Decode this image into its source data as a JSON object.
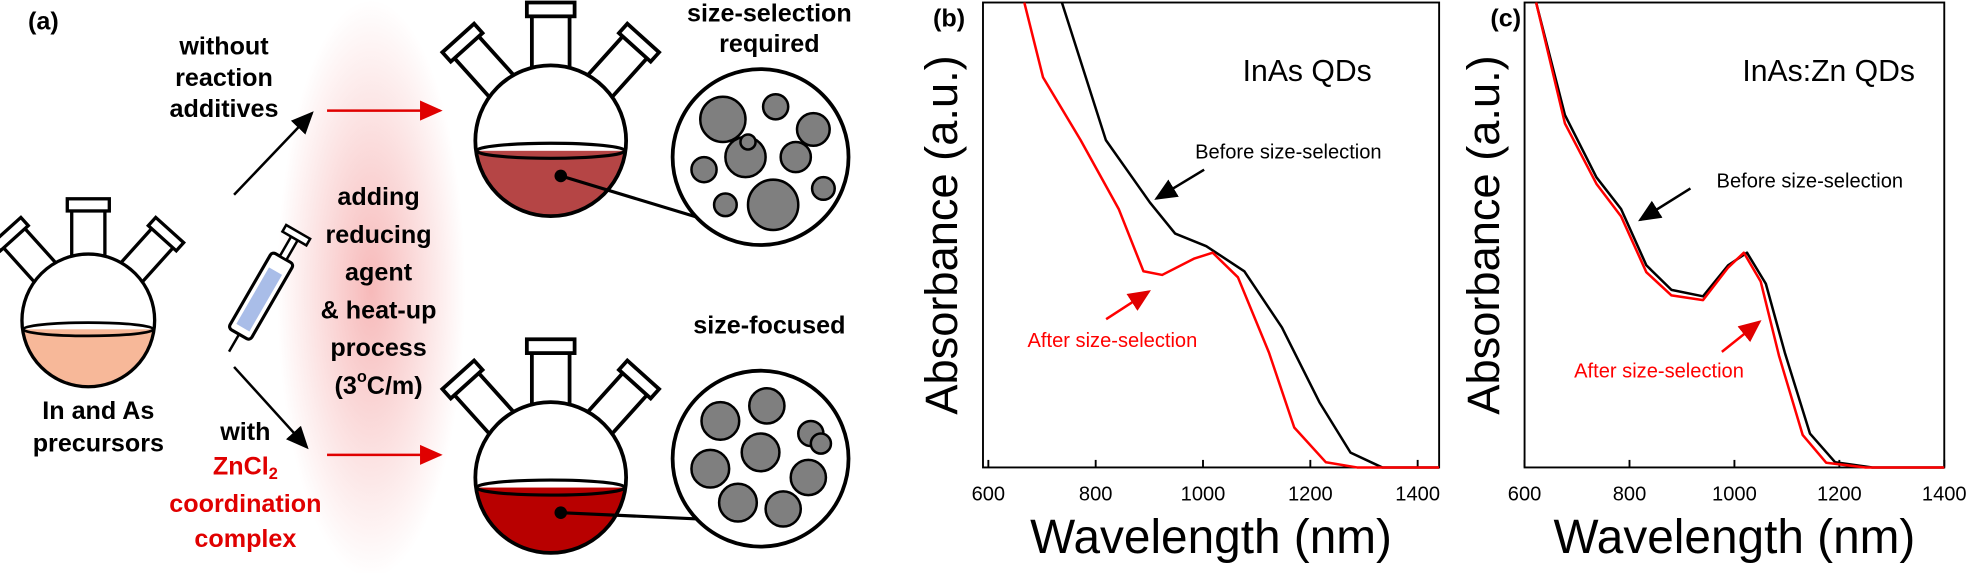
{
  "diagram": {
    "panel": "(a)",
    "top_route": [
      "without",
      "reaction",
      "additives"
    ],
    "top_result": [
      "size-selection",
      "required"
    ],
    "middle": [
      "adding",
      "reducing",
      "agent",
      "& heat-up",
      "process"
    ],
    "condition": {
      "open": "(3",
      "sup": "o",
      "close": "C/m)"
    },
    "bottom_result": "size-focused",
    "precursors": [
      "In and As",
      "precursors"
    ],
    "with": "with",
    "additive": {
      "base": "ZnCl",
      "sub": "2"
    },
    "additive_rest": [
      "coordination",
      "complex"
    ]
  },
  "chart_data": [
    {
      "type": "line",
      "panel": "(b)",
      "title": "InAs QDs",
      "xlabel": "Wavelength (nm)",
      "ylabel": "Absorbance (a.u.)",
      "xlim": [
        590,
        1440
      ],
      "xticks": [
        600,
        800,
        1000,
        1200,
        1400
      ],
      "ylim": [
        0,
        1
      ],
      "annotations": [
        {
          "text": "Before size-selection",
          "color": "#000000"
        },
        {
          "text": "After size-selection",
          "color": "#ff0000"
        }
      ],
      "series": [
        {
          "name": "Before size-selection",
          "color": "#000000",
          "x": [
            737,
            819,
            901,
            948,
            1006,
            1077,
            1147,
            1217,
            1275,
            1334,
            1440
          ],
          "values": [
            1.0,
            0.704,
            0.57,
            0.503,
            0.476,
            0.422,
            0.301,
            0.14,
            0.032,
            0,
            0
          ]
        },
        {
          "name": "After size-selection",
          "color": "#ff0000",
          "x": [
            667,
            702,
            772,
            843,
            889,
            924,
            983,
            1018,
            1065,
            1123,
            1170,
            1229,
            1287,
            1440
          ],
          "values": [
            1.0,
            0.839,
            0.704,
            0.556,
            0.422,
            0.414,
            0.449,
            0.462,
            0.409,
            0.247,
            0.086,
            0.011,
            0,
            0
          ]
        }
      ]
    },
    {
      "type": "line",
      "panel": "(c)",
      "title": "InAs:Zn QDs",
      "xlabel": "Wavelength (nm)",
      "ylabel": "Absorbance (a.u.)",
      "xlim": [
        600,
        1400
      ],
      "xticks": [
        600,
        800,
        1000,
        1200,
        1400
      ],
      "ylim": [
        0,
        1
      ],
      "annotations": [
        {
          "text": "Before size-selection",
          "color": "#000000"
        },
        {
          "text": "After size-selection",
          "color": "#ff0000"
        }
      ],
      "series": [
        {
          "name": "Before size-selection",
          "color": "#000000",
          "x": [
            622,
            677,
            737,
            784,
            832,
            880,
            940,
            988,
            1024,
            1060,
            1096,
            1144,
            1192,
            1263,
            1400
          ],
          "values": [
            1.0,
            0.758,
            0.624,
            0.556,
            0.435,
            0.382,
            0.368,
            0.435,
            0.462,
            0.395,
            0.247,
            0.073,
            0.011,
            0,
            0
          ]
        },
        {
          "name": "After size-selection",
          "color": "#ff0000",
          "x": [
            622,
            677,
            737,
            784,
            832,
            880,
            940,
            988,
            1018,
            1050,
            1085,
            1130,
            1175,
            1250,
            1400
          ],
          "values": [
            1.0,
            0.74,
            0.61,
            0.54,
            0.42,
            0.37,
            0.36,
            0.43,
            0.462,
            0.4,
            0.24,
            0.07,
            0.01,
            0,
            0
          ]
        }
      ]
    }
  ]
}
